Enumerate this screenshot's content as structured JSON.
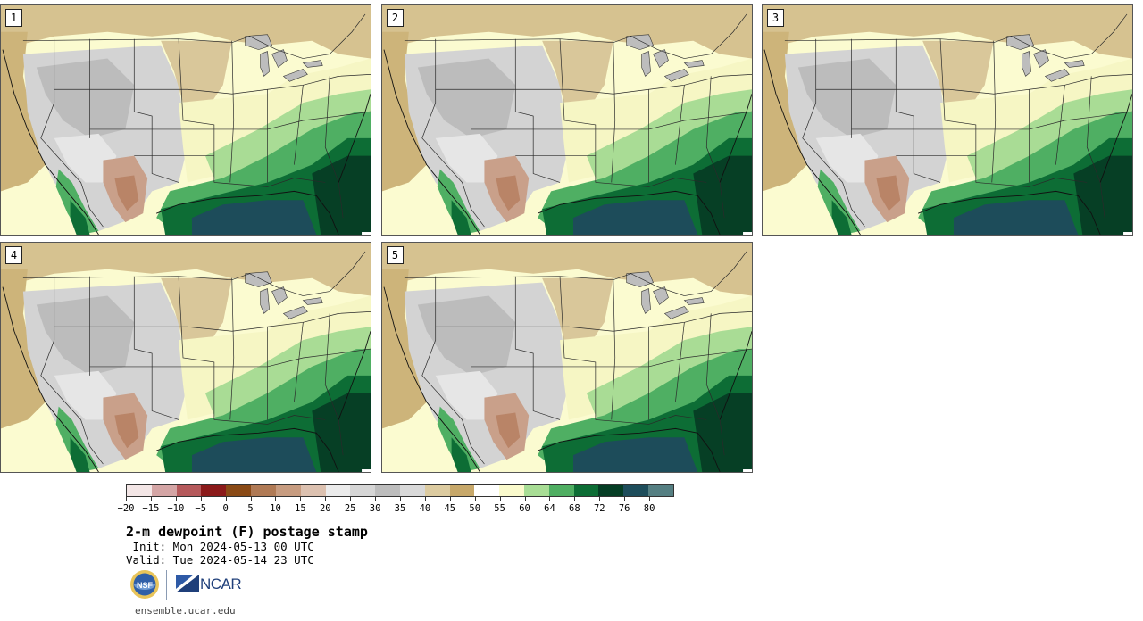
{
  "panels": [
    {
      "label": "1"
    },
    {
      "label": "2"
    },
    {
      "label": "3"
    },
    {
      "label": "4"
    },
    {
      "label": "5"
    }
  ],
  "colorbar": {
    "colors": [
      "#f3e6e6",
      "#d4a5a5",
      "#b5595b",
      "#8b1a1a",
      "#8a4a16",
      "#b07a55",
      "#c79c80",
      "#dcc1b0",
      "#ebebeb",
      "#d6d6d6",
      "#bdbdbd",
      "#d9d9d9",
      "#dccba0",
      "#c7a86a",
      "#ffffff",
      "#fafacc",
      "#a8dd95",
      "#4fae62",
      "#0d6d35",
      "#053d24",
      "#1e4d5b",
      "#557f82"
    ],
    "tick_labels": [
      "−20",
      "−15",
      "−10",
      "−5",
      "0",
      "5",
      "10",
      "15",
      "20",
      "25",
      "30",
      "35",
      "40",
      "45",
      "50",
      "55",
      "60",
      "64",
      "68",
      "72",
      "76",
      "80"
    ]
  },
  "title": "2-m dewpoint (F) postage stamp",
  "init": " Init: Mon 2024-05-13 00 UTC",
  "valid": "Valid: Tue 2024-05-14 23 UTC",
  "logos": {
    "nsf": "NSF",
    "ncar": "NCAR"
  },
  "url": "ensemble.ucar.edu",
  "icons": {
    "nsf_logo": "nsf-seal-icon",
    "ncar_logo": "ncar-mark-icon"
  }
}
